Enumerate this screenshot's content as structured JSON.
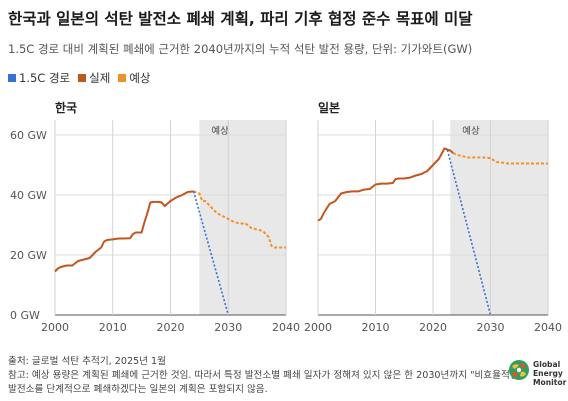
{
  "title": "한국과 일본의 석탄 발전소 폐쇄 계획, 파리 기후 협정 준수 목표에 미달",
  "subtitle": "1.5C 경로 대비 계획된 폐쇄에 근거한 2040년까지의 누적 석탄 발전 용량, 단위: 기가와트(GW)",
  "legend": [
    {
      "label": "1.5C 경로",
      "color": "#3a6fd0"
    },
    {
      "label": "실제",
      "color": "#c2561f"
    },
    {
      "label": "예상",
      "color": "#f0912a"
    }
  ],
  "footer": {
    "source": "출처: 글로벌 석탄 추적기, 2025년 1월",
    "note1": "참고: 예상 용량은 계획된 폐쇄에 근거한 것임. 따라서 특정 발전소별 폐쇄 일자가 정해져 있지 않은 한 2030년까지 \"비효율적인\"",
    "note2": "발전소를 단계적으로 폐쇄하겠다는 일본의 계획은 포함되지 않음."
  },
  "logo": {
    "line1": "Global",
    "line2": "Energy",
    "line3": "Monitor"
  },
  "colors": {
    "pathway": "#3a6fd0",
    "actual": "#c2561f",
    "projected": "#f0912a",
    "shade": "#e8e8e8"
  },
  "chart_data": [
    {
      "type": "line",
      "title": "한국",
      "shade_label": "예상",
      "shade_range": [
        2025,
        2040
      ],
      "xlim": [
        2000,
        2040
      ],
      "ylim": [
        0,
        65
      ],
      "xticks": [
        2000,
        2010,
        2020,
        2030,
        2040
      ],
      "yticks": [
        0,
        20,
        40,
        60
      ],
      "ytick_labels": [
        "0 GW",
        "20 GW",
        "40 GW",
        "60 GW"
      ],
      "series": [
        {
          "name": "실제",
          "points": [
            [
              2000,
              14.5
            ],
            [
              2000.5,
              15.5
            ],
            [
              2001,
              16
            ],
            [
              2002,
              16.5
            ],
            [
              2003,
              16.5
            ],
            [
              2004,
              18
            ],
            [
              2005,
              18.5
            ],
            [
              2006,
              19
            ],
            [
              2007,
              21
            ],
            [
              2008,
              22.5
            ],
            [
              2008.5,
              24.5
            ],
            [
              2009,
              25
            ],
            [
              2010,
              25.2
            ],
            [
              2011,
              25.5
            ],
            [
              2012,
              25.5
            ],
            [
              2013,
              25.6
            ],
            [
              2013.5,
              27
            ],
            [
              2014,
              27.5
            ],
            [
              2015,
              27.5
            ],
            [
              2015.5,
              31
            ],
            [
              2016,
              34
            ],
            [
              2016.5,
              37.5
            ],
            [
              2017,
              37.7
            ],
            [
              2018,
              37.7
            ],
            [
              2018.5,
              37.5
            ],
            [
              2019,
              36.3
            ],
            [
              2020,
              38
            ],
            [
              2021,
              39.2
            ],
            [
              2022,
              40
            ],
            [
              2023,
              41
            ],
            [
              2024,
              41.2
            ]
          ]
        },
        {
          "name": "예상",
          "points": [
            [
              2024,
              41.2
            ],
            [
              2025,
              40.5
            ],
            [
              2025.5,
              38
            ],
            [
              2026,
              38
            ],
            [
              2027,
              36
            ],
            [
              2028,
              34
            ],
            [
              2029,
              33
            ],
            [
              2030,
              32
            ],
            [
              2031,
              31
            ],
            [
              2032,
              30.5
            ],
            [
              2033,
              30.5
            ],
            [
              2034,
              29
            ],
            [
              2035,
              28.5
            ],
            [
              2036,
              28
            ],
            [
              2037,
              26
            ],
            [
              2037.5,
              23
            ],
            [
              2038,
              22.5
            ],
            [
              2039,
              22.5
            ],
            [
              2040,
              22.5
            ]
          ]
        },
        {
          "name": "1.5C 경로",
          "points": [
            [
              2024,
              41.2
            ],
            [
              2030,
              0
            ]
          ]
        }
      ]
    },
    {
      "type": "line",
      "title": "일본",
      "shade_label": "예상",
      "shade_range": [
        2023,
        2040
      ],
      "xlim": [
        2000,
        2040
      ],
      "ylim": [
        0,
        65
      ],
      "xticks": [
        2000,
        2010,
        2020,
        2030,
        2040
      ],
      "yticks": [
        0,
        20,
        40,
        60
      ],
      "series": [
        {
          "name": "실제",
          "points": [
            [
              2000,
              31.5
            ],
            [
              2000.5,
              32
            ],
            [
              2001,
              34
            ],
            [
              2002,
              37
            ],
            [
              2003,
              38
            ],
            [
              2004,
              40.5
            ],
            [
              2005,
              41
            ],
            [
              2006,
              41.2
            ],
            [
              2007,
              41.2
            ],
            [
              2008,
              41.8
            ],
            [
              2009,
              42
            ],
            [
              2010,
              43.5
            ],
            [
              2011,
              43.8
            ],
            [
              2012,
              43.8
            ],
            [
              2013,
              44
            ],
            [
              2013.5,
              45.3
            ],
            [
              2014,
              45.5
            ],
            [
              2015,
              45.5
            ],
            [
              2016,
              45.8
            ],
            [
              2017,
              46.5
            ],
            [
              2018,
              47
            ],
            [
              2019,
              48
            ],
            [
              2020,
              50
            ],
            [
              2021,
              52
            ],
            [
              2022,
              55.5
            ],
            [
              2023,
              54.8
            ],
            [
              2023.5,
              54
            ]
          ]
        },
        {
          "name": "예상",
          "points": [
            [
              2023.5,
              54
            ],
            [
              2024,
              53.5
            ],
            [
              2025,
              53
            ],
            [
              2026,
              52.5
            ],
            [
              2027,
              52.5
            ],
            [
              2028,
              52.5
            ],
            [
              2029,
              52.5
            ],
            [
              2030,
              52.3
            ],
            [
              2031,
              51
            ],
            [
              2032,
              50.8
            ],
            [
              2033,
              50.5
            ],
            [
              2034,
              50.5
            ],
            [
              2035,
              50.5
            ],
            [
              2036,
              50.5
            ],
            [
              2037,
              50.5
            ],
            [
              2038,
              50.5
            ],
            [
              2039,
              50.5
            ],
            [
              2040,
              50.5
            ]
          ]
        },
        {
          "name": "1.5C 경로",
          "points": [
            [
              2022.5,
              55
            ],
            [
              2030,
              0
            ]
          ]
        }
      ]
    }
  ]
}
